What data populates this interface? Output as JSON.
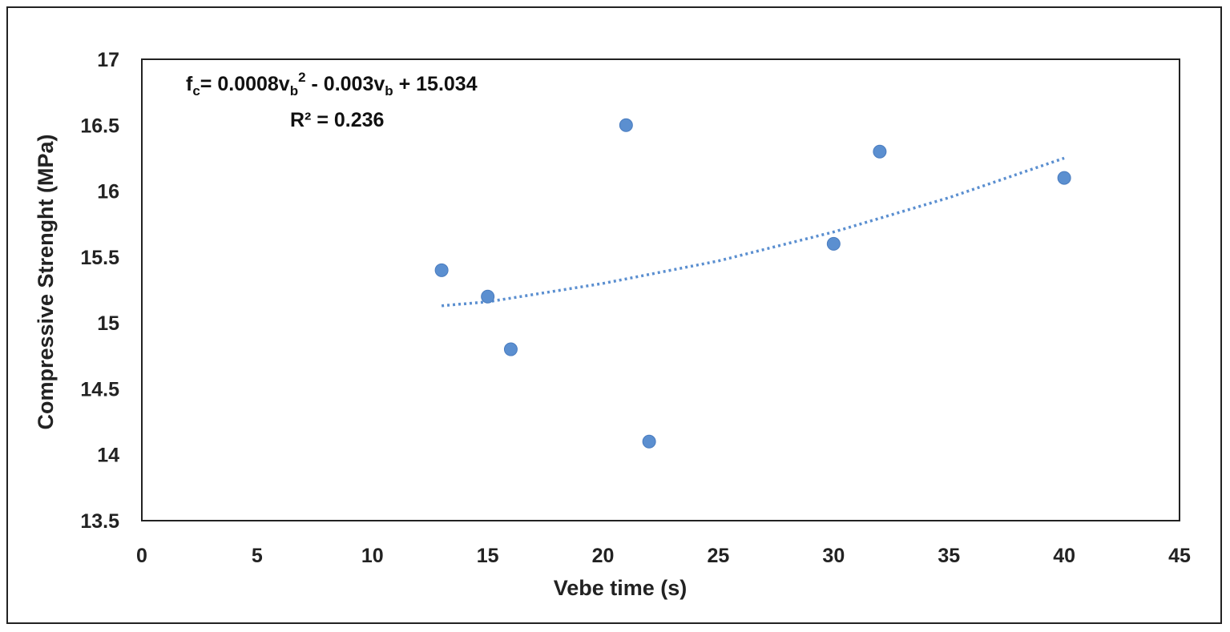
{
  "chart_data": {
    "type": "scatter",
    "xlabel": "Vebe time (s)",
    "ylabel": "Compressive Strenght (MPa)",
    "xlim": [
      0,
      45
    ],
    "ylim": [
      13.5,
      17
    ],
    "x_ticks": [
      "0",
      "5",
      "10",
      "15",
      "20",
      "25",
      "30",
      "35",
      "40",
      "45"
    ],
    "y_ticks": [
      "13.5",
      "14",
      "14.5",
      "15",
      "15.5",
      "16",
      "16.5",
      "17"
    ],
    "grid": false,
    "legend": "none",
    "marker_color": "#5b8fd0",
    "trendline_color": "#5b8fd0",
    "points": [
      {
        "x": 13,
        "y": 15.4
      },
      {
        "x": 15,
        "y": 15.2
      },
      {
        "x": 16,
        "y": 14.8
      },
      {
        "x": 21,
        "y": 16.5
      },
      {
        "x": 22,
        "y": 14.1
      },
      {
        "x": 30,
        "y": 15.6
      },
      {
        "x": 32,
        "y": 16.3
      },
      {
        "x": 40,
        "y": 16.1
      }
    ],
    "trendline": {
      "type": "polynomial",
      "order": 2,
      "x_range": [
        13,
        40
      ],
      "display_coefficients": {
        "a": 0.0008,
        "b": -0.003,
        "c": 15.034
      },
      "fitted": [
        {
          "x": 13,
          "y": 15.13
        },
        {
          "x": 15,
          "y": 15.16
        },
        {
          "x": 20,
          "y": 15.3
        },
        {
          "x": 25,
          "y": 15.47
        },
        {
          "x": 30,
          "y": 15.69
        },
        {
          "x": 35,
          "y": 15.95
        },
        {
          "x": 40,
          "y": 16.25
        }
      ]
    },
    "equation": {
      "lhs_f": "f",
      "lhs_sub": "c",
      "eq_part1": "= 0.0008v",
      "sub_b1": "b",
      "sup_2": "2",
      "eq_part2": " - 0.003v",
      "sub_b2": "b",
      "eq_part3": " + 15.034",
      "r2": "R² = 0.236"
    }
  }
}
